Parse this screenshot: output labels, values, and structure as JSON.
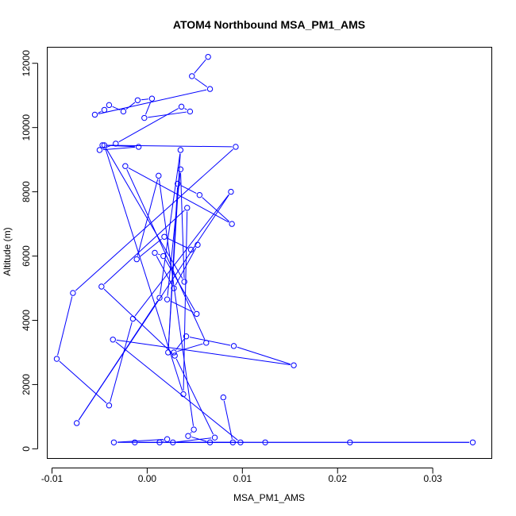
{
  "chart_data": {
    "type": "line",
    "title": "ATOM4 Northbound MSA_PM1_AMS",
    "xlabel": "MSA_PM1_AMS",
    "ylabel": "Altitude (m)",
    "xlim": [
      -0.0105,
      0.0362
    ],
    "ylim": [
      -300,
      12500
    ],
    "x_ticks": [
      -0.01,
      0.0,
      0.01,
      0.02,
      0.03
    ],
    "x_tick_labels": [
      "-0.01",
      "0.00",
      "0.01",
      "0.02",
      "0.03"
    ],
    "y_ticks": [
      0,
      2000,
      4000,
      6000,
      8000,
      10000,
      12000
    ],
    "y_tick_labels": [
      "0",
      "2000",
      "4000",
      "6000",
      "8000",
      "10000",
      "12000"
    ],
    "color": "#0000ff",
    "marker": "open-circle",
    "grid": false,
    "legend": "none",
    "series": [
      {
        "x": [
          0.0064,
          0.0047,
          0.0066,
          -0.0055,
          -0.0045,
          -0.004,
          -0.0025,
          -0.001,
          0.0005,
          -0.0003,
          0.0045,
          0.0036,
          -0.0033,
          -0.005,
          -0.0009,
          -0.0047,
          0.0093,
          -0.0078,
          -0.0095,
          -0.004,
          -0.0015,
          0.0088,
          -0.0074,
          0.0013,
          0.0035,
          0.0022,
          0.0032,
          0.0055,
          0.0089,
          -0.0023,
          0.0062,
          0.0028,
          0.0041,
          0.0091,
          0.0154,
          -0.0036,
          0.0098,
          0.0066,
          0.0043,
          0.0049,
          0.0012,
          -0.0011,
          0.0018,
          0.0046,
          0.0053,
          0.0028,
          0.0008,
          0.0017,
          0.0052,
          0.0021,
          0.0035,
          0.0039,
          -0.0045,
          0.0038,
          0.0042,
          -0.0048,
          0.0029,
          0.0071,
          0.0027,
          0.0124,
          0.0213,
          0.0342,
          -0.0013,
          0.0013,
          0.0021,
          -0.0035,
          0.009,
          0.008
        ],
        "y": [
          12200,
          11600,
          11200,
          10400,
          10550,
          10700,
          10500,
          10850,
          10900,
          10300,
          10500,
          10650,
          9500,
          9300,
          9400,
          9450,
          9400,
          4850,
          2800,
          1350,
          4050,
          8000,
          800,
          4700,
          9300,
          3000,
          8250,
          7900,
          7000,
          8800,
          3300,
          3000,
          3500,
          3200,
          2600,
          3400,
          200,
          200,
          400,
          600,
          8500,
          5900,
          6600,
          6200,
          6350,
          5000,
          6100,
          6000,
          4200,
          4650,
          8700,
          5200,
          9450,
          1700,
          7500,
          5050,
          2900,
          350,
          200,
          200,
          200,
          200,
          200,
          200,
          300,
          200,
          200,
          1600
        ]
      }
    ]
  }
}
